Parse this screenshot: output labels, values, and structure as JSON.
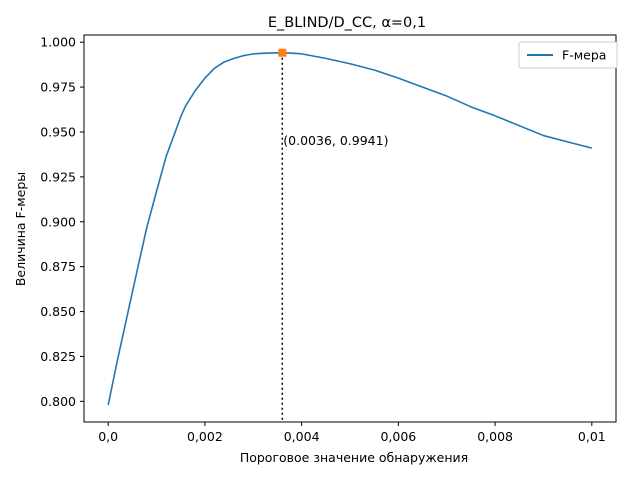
{
  "chart_data": {
    "type": "line",
    "title": "E_BLIND/D_CC, α=0,1",
    "xlabel": "Пороговое значение обнаружения",
    "ylabel": "Величина F-меры",
    "xlim": [
      -0.0005,
      0.0105
    ],
    "ylim": [
      0.7885,
      1.004
    ],
    "xticks": [
      0.0,
      0.002,
      0.004,
      0.006,
      0.008,
      0.01
    ],
    "xtick_labels": [
      "0,0",
      "0,002",
      "0,004",
      "0,006",
      "0,008",
      "0,01"
    ],
    "yticks": [
      0.8,
      0.825,
      0.85,
      0.875,
      0.9,
      0.925,
      0.95,
      0.975,
      1.0
    ],
    "ytick_labels": [
      "0.800",
      "0.825",
      "0.850",
      "0.875",
      "0.900",
      "0.925",
      "0.950",
      "0.975",
      "1.000"
    ],
    "grid": false,
    "legend_position": "top-right",
    "series": [
      {
        "name": "F-мера",
        "color": "#1f77b4",
        "x": [
          0.0,
          0.0002,
          0.0004,
          0.0006,
          0.0008,
          0.001,
          0.0012,
          0.0014,
          0.0015,
          0.0016,
          0.0018,
          0.002,
          0.0022,
          0.0024,
          0.0026,
          0.0028,
          0.003,
          0.0032,
          0.0034,
          0.0036,
          0.0038,
          0.004,
          0.0045,
          0.005,
          0.0055,
          0.006,
          0.0065,
          0.007,
          0.0075,
          0.008,
          0.0085,
          0.009,
          0.0095,
          0.01
        ],
        "y": [
          0.798,
          0.824,
          0.8485,
          0.873,
          0.897,
          0.917,
          0.9365,
          0.951,
          0.9585,
          0.9645,
          0.973,
          0.98,
          0.9855,
          0.989,
          0.991,
          0.9925,
          0.9935,
          0.9938,
          0.994,
          0.9941,
          0.9939,
          0.9935,
          0.991,
          0.988,
          0.9845,
          0.98,
          0.975,
          0.97,
          0.964,
          0.959,
          0.9535,
          0.948,
          0.9445,
          0.941
        ]
      }
    ],
    "marker": {
      "x": 0.0036,
      "y": 0.9941,
      "color": "#ff7f0e"
    },
    "vline": {
      "x": 0.0036,
      "style": "dotted"
    },
    "annotation": {
      "text": "(0.0036, 0.9941)",
      "x": 0.0036,
      "y": 0.9451
    }
  }
}
